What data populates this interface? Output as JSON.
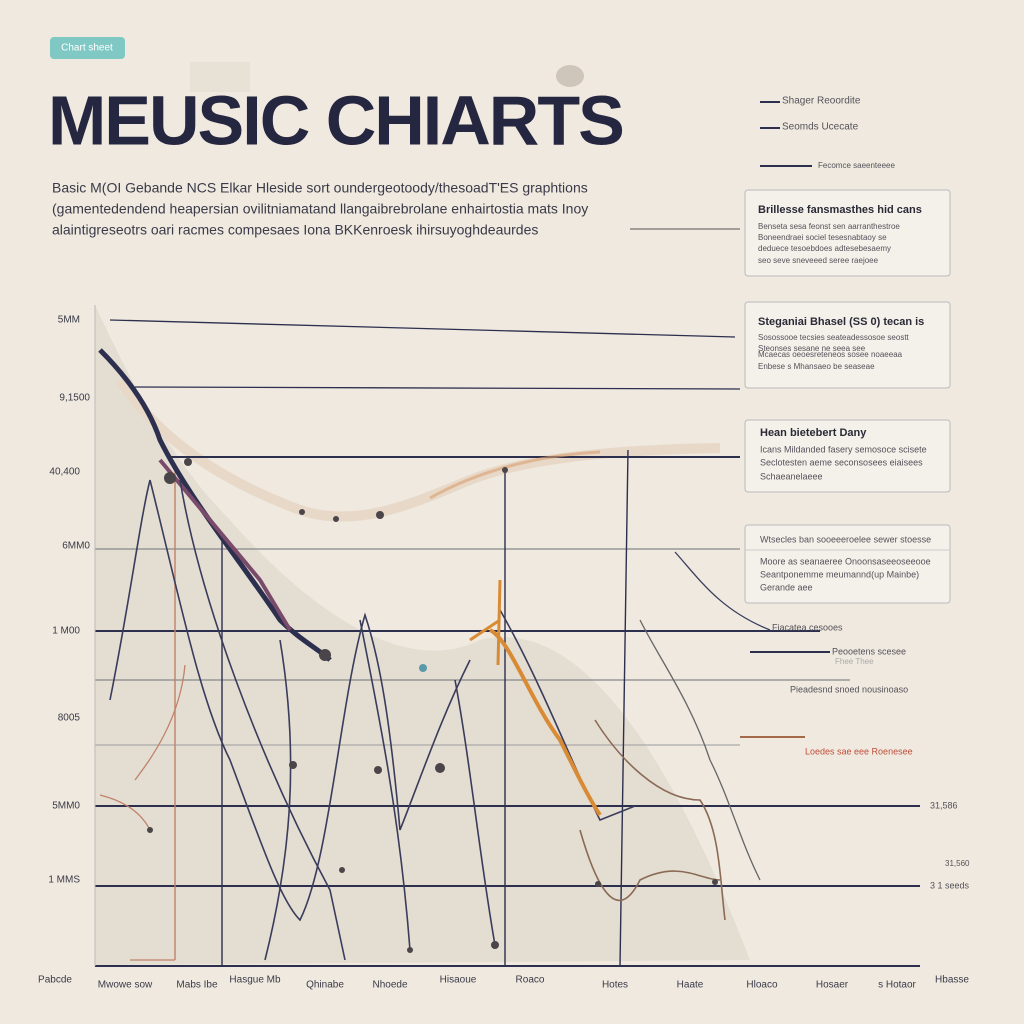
{
  "header": {
    "tag": "Chart sheet",
    "title": "MEUSIC CHIARTS",
    "description": [
      "Basic M(OI Gebande NCS Elkar Hleside sort oundergeotoody/thesoadT'ES graphtions",
      "(gamentedendend heapersian ovilitniamatand llangaibrebrolane enhairtostia mats Inoy",
      "alaintigreseotrs oari racmes compesaes Iona BKKenroesk ihirsuyoghdeaurdes"
    ]
  },
  "axis": {
    "y_labels": [
      "5MM",
      "9,1500",
      "40,400",
      "6MM0",
      "1 M00",
      "8005",
      "5MM0",
      "1 MMS"
    ],
    "x_labels": [
      "Pabcde",
      "Mwowe sow",
      "Mabs Ibe",
      "Hasgue Mb",
      "Qhinabe",
      "Nhoede",
      "Hisaoue",
      "Roaco",
      "Hotes",
      "Haate",
      "Hloaco",
      "Hosaer",
      "s Hotaor",
      "Hbasse"
    ]
  },
  "callouts": [
    {
      "title": "Brillesse fansmasthes hid cans",
      "lines": [
        "Benseta sesa feonst sen aarranthestroe",
        "Boneendraei sociel tesesnabtaoy se",
        "deduece tesoebdoes adtesebesaemy",
        "seo seve sneveeed seree raejoee"
      ]
    },
    {
      "title": "Steganiai Bhasel (SS 0) tecan is",
      "lines": [
        "Sosossooe tecsies seateadessosoe seostt",
        "Steonses sesane ne seea see",
        "Mcaecas oeoesreteneos sosee noaeeaa",
        "Enbese s Mhansaeo be seaseae"
      ]
    },
    {
      "title": "Hean bietebert Dany",
      "lines": [
        "Icans Mildanded fasery semosoce scisete",
        "Seclotesten aeme seconsosees eiaisees",
        "Schaeanelaeee"
      ]
    },
    {
      "title": "Wtsecles ban sooeeeroelee sewer stoesse",
      "lines": [
        "Moore as seanaeree Onoonsaseeoseeooe",
        "Seantponemme meumannd(up Mainbe)",
        "Gerande aee"
      ]
    }
  ],
  "side_notes": [
    "Shager Reoordite",
    "Seomds Ucecate",
    "Fecomce saeenteeee",
    "Fiacatea cesooes",
    "Peooetens scesee",
    "Fhee Thee",
    "Pieadesnd snoed nousinoaso",
    "Loedes sae eee Roenesee",
    "31,586",
    "31,560",
    "3 1 seeds"
  ]
}
